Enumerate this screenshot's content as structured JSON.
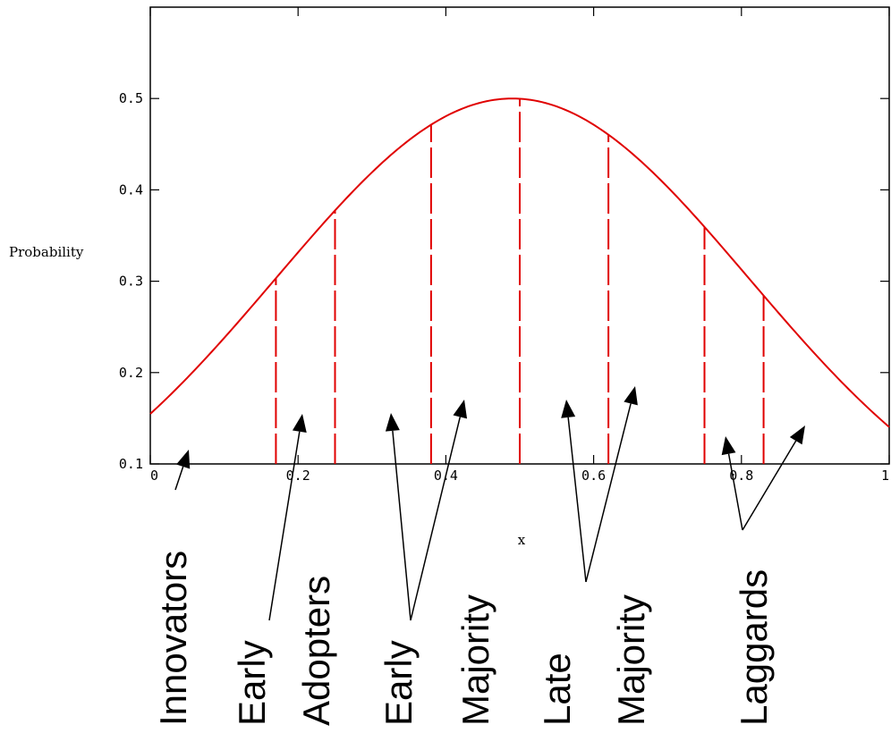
{
  "chart_data": {
    "type": "line",
    "title": "",
    "xlabel": "x",
    "ylabel": "Probability",
    "xlim": [
      0,
      1
    ],
    "ylim": [
      0.1,
      0.6
    ],
    "grid": false,
    "x_ticks": [
      0,
      0.2,
      0.4,
      0.6,
      0.8,
      1
    ],
    "x_tick_labels": [
      "0",
      "0.2",
      "0.4",
      "0.6",
      "0.8",
      "1"
    ],
    "y_ticks": [
      0.1,
      0.2,
      0.3,
      0.4,
      0.5
    ],
    "y_tick_labels": [
      "0.1",
      "0.2",
      "0.3",
      "0.4",
      "0.5"
    ],
    "curve": {
      "color": "#e00000",
      "x": [
        0,
        0.05,
        0.1,
        0.15,
        0.2,
        0.25,
        0.3,
        0.35,
        0.4,
        0.45,
        0.5,
        0.55,
        0.6,
        0.65,
        0.7,
        0.75,
        0.8,
        0.85,
        0.9,
        0.95,
        1
      ],
      "y": [
        0.127,
        0.15,
        0.182,
        0.222,
        0.275,
        0.34,
        0.395,
        0.44,
        0.473,
        0.494,
        0.5,
        0.494,
        0.473,
        0.44,
        0.395,
        0.34,
        0.275,
        0.222,
        0.182,
        0.15,
        0.127
      ]
    },
    "dividers": {
      "color": "#e00000",
      "x": [
        0.17,
        0.25,
        0.38,
        0.5,
        0.62,
        0.75,
        0.83
      ]
    },
    "categories": [
      {
        "lines": [
          "Innovators"
        ]
      },
      {
        "lines": [
          "Early",
          "Adopters"
        ]
      },
      {
        "lines": [
          "Early",
          "Majority"
        ]
      },
      {
        "lines": [
          "Late",
          "Majority"
        ]
      },
      {
        "lines": [
          "Laggards"
        ]
      }
    ]
  }
}
